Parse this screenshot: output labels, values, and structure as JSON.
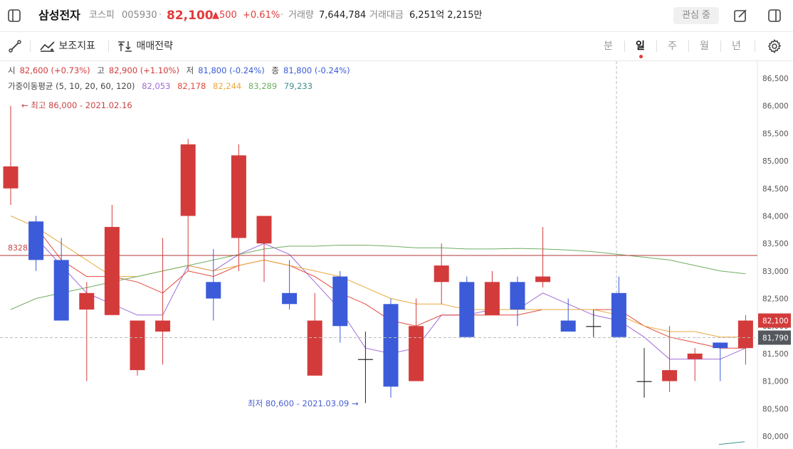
{
  "header": {
    "stock_name": "삼성전자",
    "market": "코스피",
    "code": "005930",
    "separator": "·",
    "price": "82,100",
    "change": "▲500",
    "change_pct": "+0.61%",
    "volume_label": "거래량",
    "volume_value": "7,644,784",
    "amount_label": "거래대금",
    "amount_value": "6,251억 2,215만",
    "watch_button": "관심 중"
  },
  "toolbar": {
    "indicator_label": "보조지표",
    "strategy_label": "매매전략",
    "periods": [
      "분",
      "일",
      "주",
      "월",
      "년"
    ],
    "active_period": "일"
  },
  "ohlc_info": {
    "open_label": "시",
    "open_value": "82,600 (+0.73%)",
    "high_label": "고",
    "high_value": "82,900 (+1.10%)",
    "low_label": "저",
    "low_value": "81,800 (-0.24%)",
    "close_label": "종",
    "close_value": "81,800 (-0.24%)"
  },
  "ma_info": {
    "label": "가중이동평균 (5, 10, 20, 60, 120)",
    "values": [
      "82,053",
      "82,178",
      "82,244",
      "83,289",
      "79,233"
    ]
  },
  "colors": {
    "up": "#d33b3b",
    "down": "#3b5bd9",
    "ma5": "#a06ad8",
    "ma10": "#e24a3b",
    "ma20": "#e9a93e",
    "ma60": "#6fae62",
    "ma120": "#3f8f8f"
  },
  "chart_data": {
    "type": "candlestick",
    "ylim": [
      79900,
      86800
    ],
    "y_ticks": [
      "80,000",
      "80,500",
      "81,000",
      "81,500",
      "82,000",
      "82,500",
      "83,000",
      "83,500",
      "84,000",
      "84,500",
      "85,000",
      "85,500",
      "86,000",
      "86,500"
    ],
    "candles": [
      {
        "open": 84500,
        "high": 86000,
        "low": 84200,
        "close": 84900
      },
      {
        "open": 83900,
        "high": 84000,
        "low": 83000,
        "close": 83200
      },
      {
        "open": 83200,
        "high": 83600,
        "low": 82100,
        "close": 82100
      },
      {
        "open": 82300,
        "high": 82800,
        "low": 81000,
        "close": 82600
      },
      {
        "open": 82200,
        "high": 84200,
        "low": 82200,
        "close": 83800
      },
      {
        "open": 81200,
        "high": 82100,
        "low": 81100,
        "close": 82100
      },
      {
        "open": 81900,
        "high": 83600,
        "low": 81300,
        "close": 82100
      },
      {
        "open": 84000,
        "high": 85400,
        "low": 83000,
        "close": 85300
      },
      {
        "open": 82800,
        "high": 83400,
        "low": 82100,
        "close": 82500
      },
      {
        "open": 83600,
        "high": 85300,
        "low": 83000,
        "close": 85100
      },
      {
        "open": 83500,
        "high": 84000,
        "low": 82800,
        "close": 84000
      },
      {
        "open": 82600,
        "high": 83200,
        "low": 82300,
        "close": 82400
      },
      {
        "open": 81100,
        "high": 82600,
        "low": 81100,
        "close": 82100
      },
      {
        "open": 82900,
        "high": 83000,
        "low": 81700,
        "close": 82000
      },
      {
        "open": 81400,
        "high": 81900,
        "low": 80600,
        "close": 81400
      },
      {
        "open": 82400,
        "high": 82500,
        "low": 80700,
        "close": 80900
      },
      {
        "open": 81000,
        "high": 82500,
        "low": 81000,
        "close": 82000
      },
      {
        "open": 82800,
        "high": 83500,
        "low": 82400,
        "close": 83100
      },
      {
        "open": 82800,
        "high": 82900,
        "low": 81800,
        "close": 81800
      },
      {
        "open": 82200,
        "high": 83000,
        "low": 82200,
        "close": 82800
      },
      {
        "open": 82800,
        "high": 82900,
        "low": 82000,
        "close": 82300
      },
      {
        "open": 82800,
        "high": 83800,
        "low": 82700,
        "close": 82900
      },
      {
        "open": 82100,
        "high": 82500,
        "low": 81900,
        "close": 81900
      },
      {
        "open": 82000,
        "high": 82300,
        "low": 81800,
        "close": 82000
      },
      {
        "open": 82600,
        "high": 82900,
        "low": 81800,
        "close": 81800
      },
      {
        "open": 81000,
        "high": 81600,
        "low": 80700,
        "close": 81000
      },
      {
        "open": 81000,
        "high": 82000,
        "low": 80800,
        "close": 81200
      },
      {
        "open": 81400,
        "high": 81600,
        "low": 81000,
        "close": 81500
      },
      {
        "open": 81700,
        "high": 81700,
        "low": 81000,
        "close": 81600
      },
      {
        "open": 81600,
        "high": 82200,
        "low": 81300,
        "close": 82100
      }
    ],
    "moving_averages": [
      {
        "name": "5",
        "values": [
          null,
          83600,
          83100,
          82600,
          82400,
          82200,
          82200,
          83100,
          83000,
          83300,
          83500,
          83300,
          82800,
          82300,
          81600,
          81500,
          81600,
          82200,
          82200,
          82300,
          82300,
          82600,
          82400,
          82200,
          82100,
          81800,
          81400,
          81400,
          81400,
          81600
        ]
      },
      {
        "name": "10",
        "values": [
          null,
          83800,
          83200,
          82900,
          82900,
          82800,
          82600,
          83000,
          82900,
          83100,
          83200,
          83100,
          82900,
          82600,
          82400,
          82100,
          82000,
          82200,
          82200,
          82200,
          82200,
          82300,
          82300,
          82300,
          82300,
          82000,
          81800,
          81700,
          81600,
          81600
        ]
      },
      {
        "name": "20",
        "values": [
          84000,
          83800,
          83500,
          83200,
          82900,
          82900,
          83000,
          83100,
          83000,
          83100,
          83200,
          83100,
          83000,
          82900,
          82700,
          82500,
          82400,
          82400,
          82300,
          82300,
          82300,
          82300,
          82300,
          82300,
          82200,
          82000,
          81900,
          81900,
          81800,
          81800
        ]
      },
      {
        "name": "60",
        "values": [
          82300,
          82500,
          82600,
          82700,
          82800,
          82900,
          83000,
          83100,
          83200,
          83300,
          83400,
          83450,
          83450,
          83470,
          83470,
          83450,
          83420,
          83420,
          83400,
          83400,
          83410,
          83400,
          83380,
          83350,
          83300,
          83250,
          83200,
          83100,
          83000,
          82950
        ]
      },
      {
        "name": "120",
        "values": [
          null,
          null,
          null,
          null,
          null,
          null,
          null,
          null,
          null,
          null,
          null,
          null,
          null,
          null,
          null,
          null,
          null,
          null,
          null,
          null,
          null,
          null,
          null,
          null,
          null,
          null,
          null,
          null,
          79850,
          79900
        ]
      }
    ],
    "high_annotation": "← 최고 86,000 - 2021.02.16",
    "low_annotation": "최저 80,600 - 2021.03.09 →",
    "ref_line_label": "83283",
    "ref_line_value": 83283,
    "crosshair_value": 81790,
    "crosshair_label": "81,790",
    "price_tag_label": "82,100",
    "price_tag_value": 82100
  }
}
